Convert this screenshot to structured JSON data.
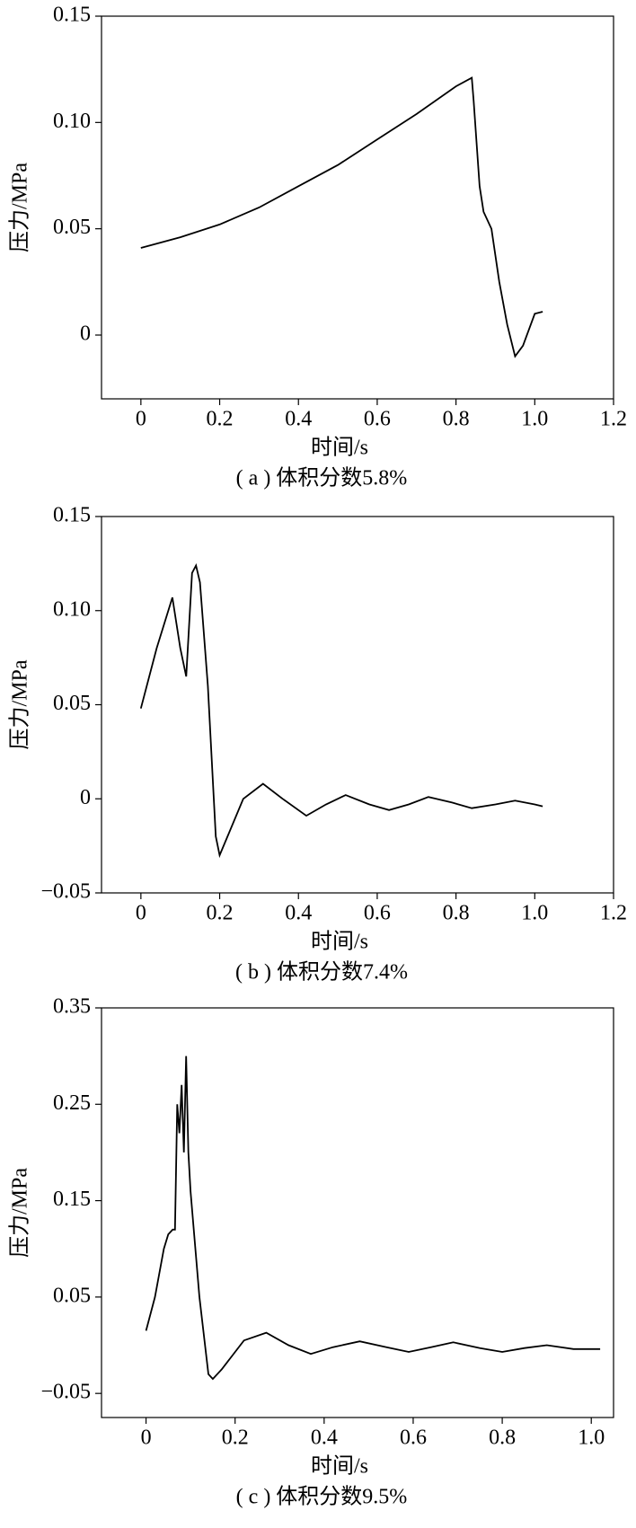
{
  "chart_data": [
    {
      "type": "line",
      "caption": "( a ) 体积分数5.8%",
      "x_label": "时间/s",
      "y_label": "压力/MPa",
      "color": "#000000",
      "x": [
        0,
        0.1,
        0.2,
        0.3,
        0.4,
        0.5,
        0.6,
        0.7,
        0.8,
        0.84,
        0.845,
        0.86,
        0.87,
        0.89,
        0.91,
        0.93,
        0.95,
        0.97,
        1.0,
        1.02
      ],
      "values": [
        0.041,
        0.046,
        0.052,
        0.06,
        0.07,
        0.08,
        0.092,
        0.104,
        0.117,
        0.121,
        0.11,
        0.07,
        0.058,
        0.05,
        0.025,
        0.005,
        -0.01,
        -0.005,
        0.01,
        0.011
      ],
      "xlim": [
        -0.1,
        1.2
      ],
      "ylim": [
        -0.03,
        0.15
      ],
      "xticks": [
        0,
        0.2,
        0.4,
        0.6,
        0.8,
        {
          "value": 1,
          "label": "1.0"
        },
        1.2
      ],
      "yticks": [
        0,
        0.05,
        {
          "value": 0.1,
          "label": "0.10"
        },
        0.15
      ]
    },
    {
      "type": "line",
      "caption": "( b ) 体积分数7.4%",
      "x_label": "时间/s",
      "y_label": "压力/MPa",
      "color": "#000000",
      "x": [
        0,
        0.04,
        0.08,
        0.1,
        0.115,
        0.13,
        0.14,
        0.15,
        0.17,
        0.19,
        0.2,
        0.22,
        0.26,
        0.31,
        0.36,
        0.42,
        0.47,
        0.52,
        0.58,
        0.63,
        0.68,
        0.73,
        0.79,
        0.84,
        0.9,
        0.95,
        1.0,
        1.02
      ],
      "values": [
        0.048,
        0.08,
        0.107,
        0.08,
        0.065,
        0.12,
        0.124,
        0.115,
        0.06,
        -0.02,
        -0.03,
        -0.02,
        0.0,
        0.008,
        0.0,
        -0.009,
        -0.003,
        0.002,
        -0.003,
        -0.006,
        -0.003,
        0.001,
        -0.002,
        -0.005,
        -0.003,
        -0.001,
        -0.003,
        -0.004
      ],
      "xlim": [
        -0.1,
        1.2
      ],
      "ylim": [
        -0.05,
        0.15
      ],
      "xticks": [
        0,
        0.2,
        0.4,
        0.6,
        0.8,
        {
          "value": 1,
          "label": "1.0"
        },
        1.2
      ],
      "yticks": [
        {
          "value": -0.05,
          "label": "−0.05"
        },
        0,
        0.05,
        {
          "value": 0.1,
          "label": "0.10"
        },
        0.15
      ]
    },
    {
      "type": "line",
      "caption": "( c ) 体积分数9.5%",
      "x_label": "时间/s",
      "y_label": "压力/MPa",
      "color": "#000000",
      "x": [
        0,
        0.02,
        0.04,
        0.05,
        0.06,
        0.065,
        0.07,
        0.075,
        0.08,
        0.085,
        0.09,
        0.095,
        0.1,
        0.12,
        0.14,
        0.15,
        0.17,
        0.22,
        0.27,
        0.32,
        0.37,
        0.42,
        0.48,
        0.54,
        0.59,
        0.64,
        0.69,
        0.75,
        0.8,
        0.85,
        0.9,
        0.96,
        1.0,
        1.02
      ],
      "values": [
        0.015,
        0.05,
        0.1,
        0.115,
        0.12,
        0.12,
        0.25,
        0.22,
        0.27,
        0.2,
        0.3,
        0.2,
        0.16,
        0.05,
        -0.03,
        -0.035,
        -0.025,
        0.005,
        0.013,
        0.0,
        -0.009,
        -0.002,
        0.004,
        -0.002,
        -0.007,
        -0.002,
        0.003,
        -0.003,
        -0.007,
        -0.003,
        0.0,
        -0.004,
        -0.004,
        -0.004
      ],
      "xlim": [
        -0.1,
        1.05
      ],
      "ylim": [
        -0.075,
        0.35
      ],
      "xticks": [
        0,
        0.2,
        0.4,
        0.6,
        0.8,
        {
          "value": 1,
          "label": "1.0"
        }
      ],
      "yticks": [
        {
          "value": -0.05,
          "label": "−0.05"
        },
        0.05,
        0.15,
        0.25,
        0.35
      ]
    }
  ]
}
